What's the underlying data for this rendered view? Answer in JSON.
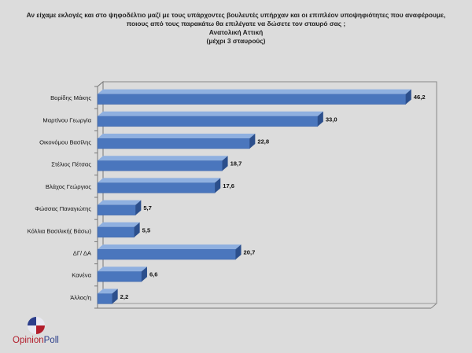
{
  "title_lines": [
    "Αν είχαμε εκλογές και στο ψηφοδέλτιο μαζί με τους υπάρχοντες βουλευτές υπήρχαν και οι επιπλέον υποψηφιότητες που αναφέρουμε,",
    "ποιους από τους παρακάτω θα επιλέγατε να δώσετε τον σταυρό σας ;",
    "Ανατολική Αττική",
    "(μέχρι 3 σταυρούς)"
  ],
  "logo": {
    "text_part1": "Opinion",
    "text_part2": "Poll",
    "colors": {
      "red": "#b21e2c",
      "blue": "#2c3e8a"
    }
  },
  "chart_data": {
    "type": "bar",
    "orientation": "horizontal",
    "style": "3d",
    "categories": [
      "Βορίδης Μάκης",
      "Μαρτίνου Γεωργία",
      "Οικονόμου Βασίλης",
      "Στέλιος Πέτσας",
      "Βλάχος Γεώργιος",
      "Φώσσας Παναγιώτης",
      "Κόλλια Βασιλική( Βάσω)",
      "ΔΓ/ ΔΑ",
      "Κανένα",
      "Άλλος/η"
    ],
    "values": [
      46.2,
      33.0,
      22.8,
      18.7,
      17.6,
      5.7,
      5.5,
      20.7,
      6.6,
      2.2
    ],
    "value_labels": [
      "46,2",
      "33,0",
      "22,8",
      "18,7",
      "17,6",
      "5,7",
      "5,5",
      "20,7",
      "6,6",
      "2,2"
    ],
    "xlim": [
      0,
      50
    ],
    "grid": false,
    "legend": "none",
    "colors": {
      "bar_front": "#4a76bd",
      "bar_top": "#8fb0e0",
      "bar_side": "#2c4f8c",
      "background": "#dcdcdc"
    }
  }
}
